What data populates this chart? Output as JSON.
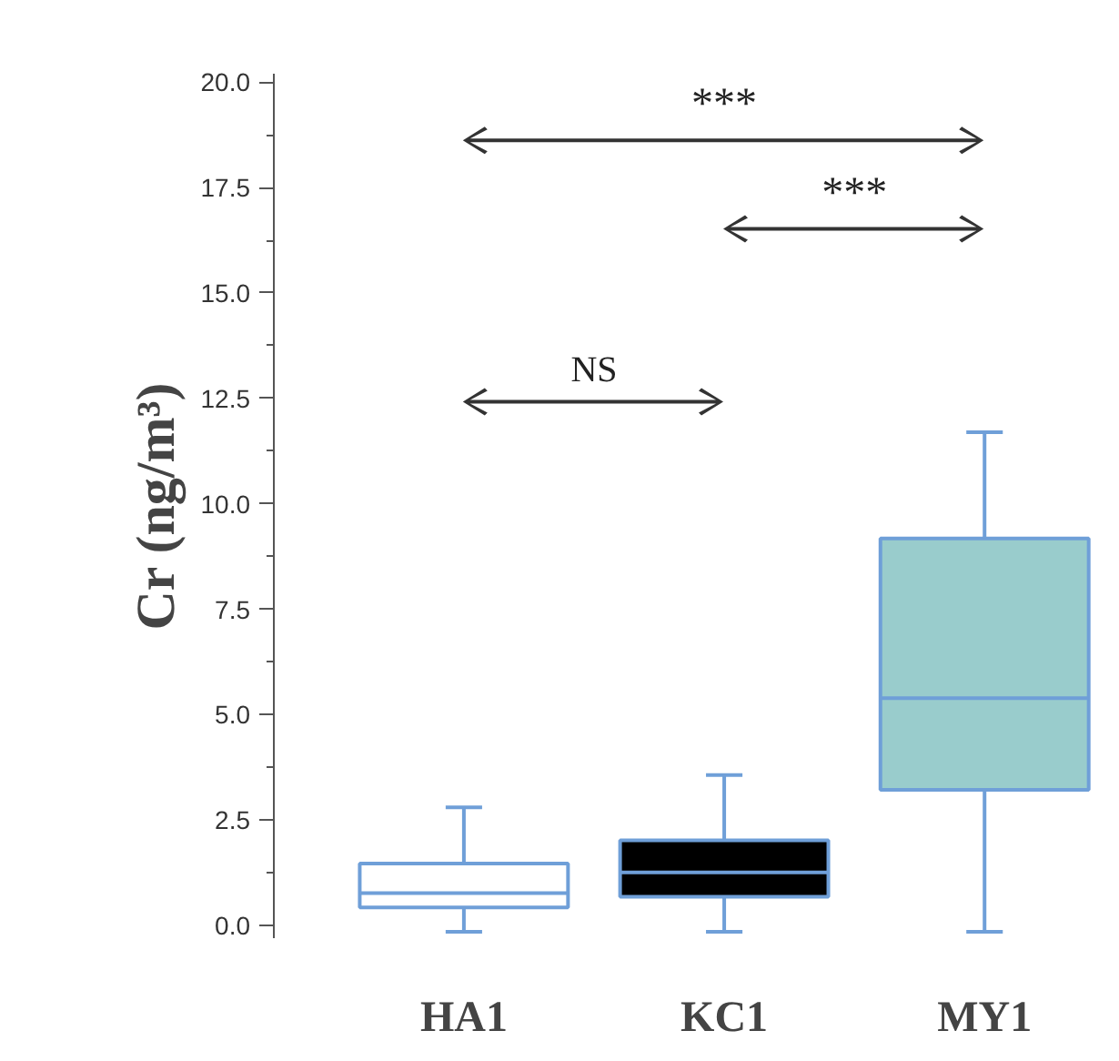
{
  "chart_data": {
    "type": "box",
    "ylabel": "Cr (ng/m³)",
    "categories": [
      "HA1",
      "KC1",
      "MY1"
    ],
    "boxes": [
      {
        "low": -0.15,
        "q1": 0.43,
        "median": 0.77,
        "q3": 1.47,
        "high": 2.8
      },
      {
        "low": -0.15,
        "q1": 0.68,
        "median": 1.26,
        "q3": 2.02,
        "high": 3.57
      },
      {
        "low": -0.15,
        "q1": 3.22,
        "median": 5.39,
        "q3": 9.18,
        "high": 11.7
      }
    ],
    "colors": [
      "#ffffff",
      "#000000",
      "#99cccc"
    ],
    "ylim": [
      -0.3,
      20.2
    ],
    "yticks": [
      {
        "value": 0,
        "label": "0.0"
      },
      {
        "value": 2.5,
        "label": "2.5"
      },
      {
        "value": 5,
        "label": "5.0"
      },
      {
        "value": 7.5,
        "label": "7.5"
      },
      {
        "value": 10,
        "label": "10.0"
      },
      {
        "value": 12.5,
        "label": "12.5"
      },
      {
        "value": 15,
        "label": "15.0"
      },
      {
        "value": 17.5,
        "label": "17.5"
      },
      {
        "value": 20,
        "label": "20.0"
      }
    ],
    "grid": false,
    "annotations": [
      "***",
      "***",
      "NS"
    ]
  }
}
